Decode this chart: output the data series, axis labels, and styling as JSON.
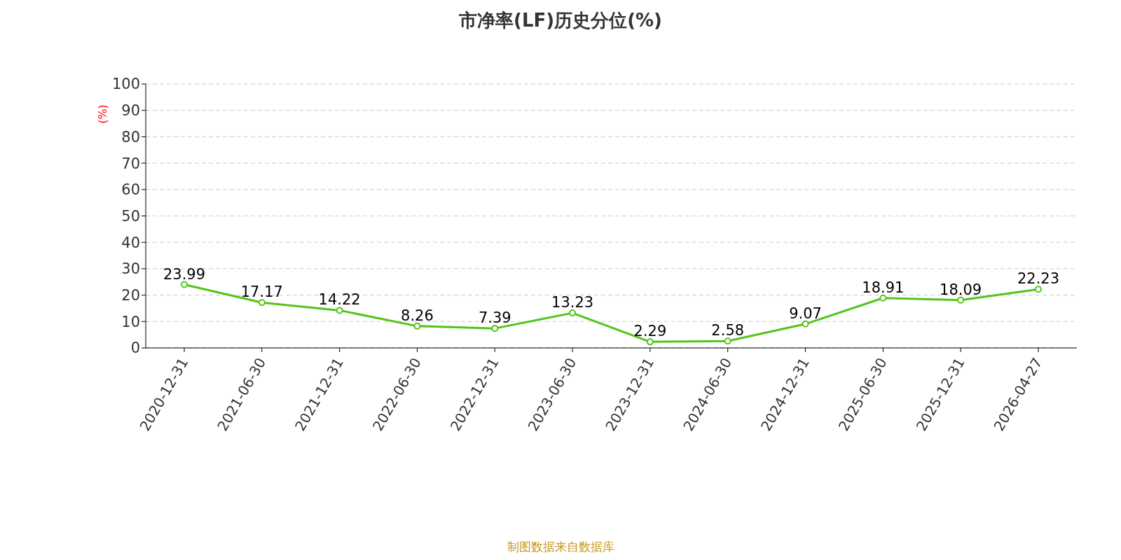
{
  "chart_data": {
    "type": "line",
    "title": "市净率(LF)历史分位(%)",
    "ylabel": "(%)",
    "categories": [
      "2020-12-31",
      "2021-06-30",
      "2021-12-31",
      "2022-06-30",
      "2022-12-31",
      "2023-06-30",
      "2023-12-31",
      "2024-06-30",
      "2024-12-31",
      "2025-06-30",
      "2025-12-31",
      "2026-04-27"
    ],
    "series": [
      {
        "color": "#52c41a",
        "values": [
          23.99,
          17.17,
          14.22,
          8.26,
          7.39,
          13.23,
          2.29,
          2.58,
          9.07,
          18.91,
          18.09,
          22.23
        ]
      }
    ],
    "ylim": [
      0,
      100
    ],
    "yticks": [
      0,
      10,
      20,
      30,
      40,
      50,
      60,
      70,
      80,
      90,
      100
    ],
    "grid": "y",
    "marker": "circle",
    "line_style": "solid",
    "data_labels": true,
    "annotations": [
      "制图数据来自数据库"
    ]
  }
}
